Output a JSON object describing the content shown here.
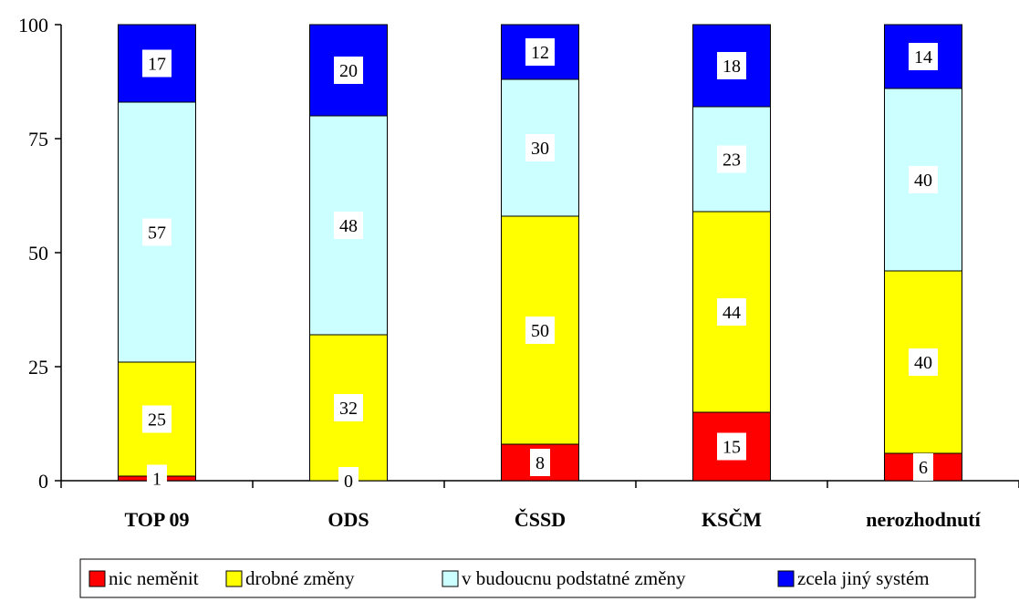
{
  "chart_data": {
    "type": "bar",
    "stacked": true,
    "categories": [
      "TOP 09",
      "ODS",
      "ČSSD",
      "KSČM",
      "nerozhodnutí"
    ],
    "series": [
      {
        "name": "nic neměnit",
        "color": "#ff0000",
        "values": [
          1,
          0,
          8,
          15,
          6
        ]
      },
      {
        "name": "drobné změny",
        "color": "#ffff00",
        "values": [
          25,
          32,
          50,
          44,
          40
        ]
      },
      {
        "name": "v budoucnu podstatné změny",
        "color": "#ccffff",
        "values": [
          57,
          48,
          30,
          23,
          40
        ]
      },
      {
        "name": "zcela jiný systém",
        "color": "#0000ff",
        "values": [
          17,
          20,
          12,
          18,
          14
        ]
      }
    ],
    "yticks": [
      "0",
      "25",
      "50",
      "75",
      "100"
    ],
    "ylim": [
      0,
      100
    ],
    "legend_position": "bottom",
    "grid": false
  }
}
